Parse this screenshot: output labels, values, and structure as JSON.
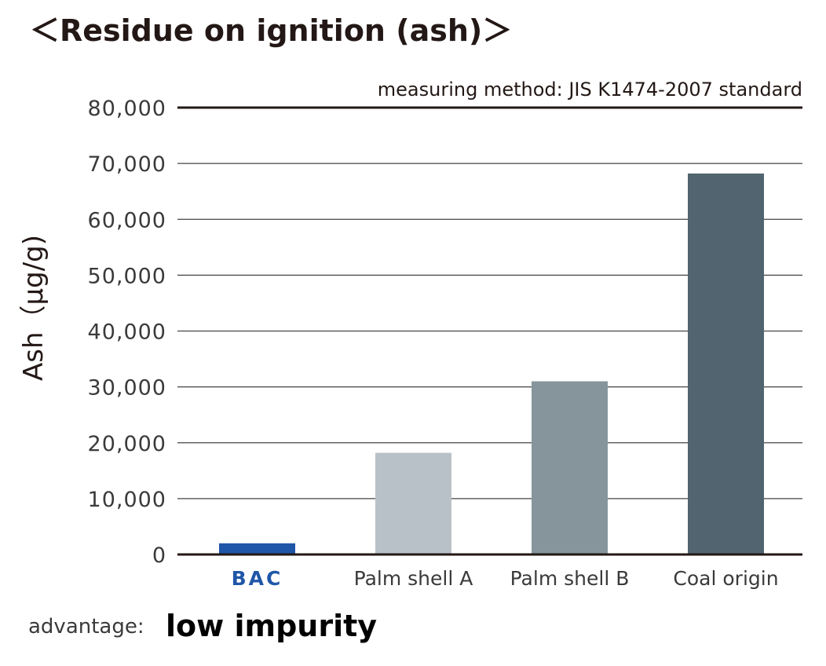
{
  "chart_data": {
    "type": "bar",
    "title": "＜Residue on ignition (ash)＞",
    "subtitle": "measuring method: JIS K1474-2007 standard",
    "ylabel": "Ash（μg/g)",
    "xlabel": "",
    "ylim": [
      0,
      80000
    ],
    "yticks": [
      "0",
      "10,000",
      "20,000",
      "30,000",
      "40,000",
      "50,000",
      "60,000",
      "70,000",
      "80,000"
    ],
    "categories": [
      "BAC",
      "Palm shell A",
      "Palm shell B",
      "Coal origin"
    ],
    "values": [
      2000,
      18200,
      31000,
      68200
    ],
    "colors": [
      "#1f56a8",
      "#b9c1c8",
      "#85959b",
      "#516470"
    ],
    "highlight_category": "BAC",
    "grid": true,
    "legend": "none"
  },
  "footer": {
    "label": "advantage:",
    "value": "low impurity"
  }
}
